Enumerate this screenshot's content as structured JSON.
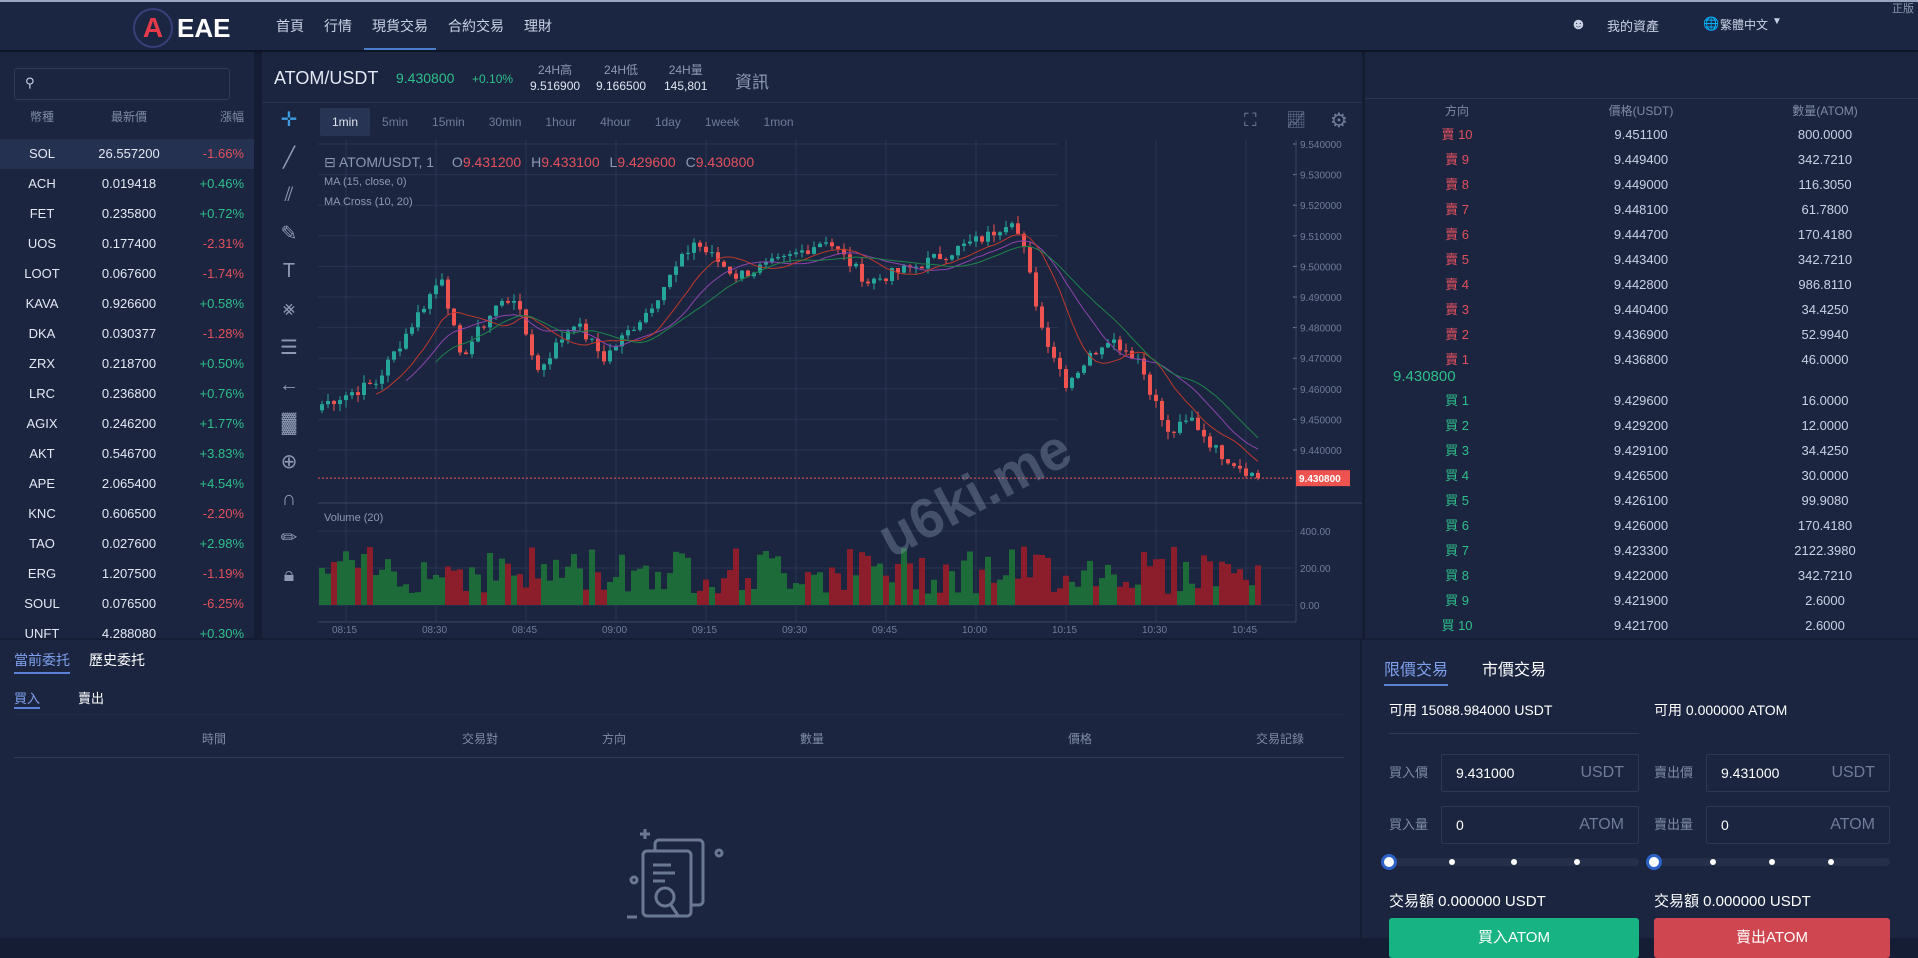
{
  "header": {
    "logo_text": "EAE",
    "nav": [
      "首頁",
      "行情",
      "現貨交易",
      "合約交易",
      "理財"
    ],
    "active_nav": 2,
    "my_assets": "我的資產",
    "language": "繁體中文",
    "corner_text": "正版"
  },
  "sidebar": {
    "search_placeholder": "",
    "columns": [
      "幣種",
      "最新價",
      "漲幅"
    ],
    "coins": [
      [
        "SOL",
        "26.557200",
        "-1.66%"
      ],
      [
        "ACH",
        "0.019418",
        "+0.46%"
      ],
      [
        "FET",
        "0.235800",
        "+0.72%"
      ],
      [
        "UOS",
        "0.177400",
        "-2.31%"
      ],
      [
        "LOOT",
        "0.067600",
        "-1.74%"
      ],
      [
        "KAVA",
        "0.926600",
        "+0.58%"
      ],
      [
        "DKA",
        "0.030377",
        "-1.28%"
      ],
      [
        "ZRX",
        "0.218700",
        "+0.50%"
      ],
      [
        "LRC",
        "0.236800",
        "+0.76%"
      ],
      [
        "AGIX",
        "0.246200",
        "+1.77%"
      ],
      [
        "AKT",
        "0.546700",
        "+3.83%"
      ],
      [
        "APE",
        "2.065400",
        "+4.54%"
      ],
      [
        "KNC",
        "0.606500",
        "-2.20%"
      ],
      [
        "TAO",
        "0.027600",
        "+2.98%"
      ],
      [
        "ERG",
        "1.207500",
        "-1.19%"
      ],
      [
        "SOUL",
        "0.076500",
        "-6.25%"
      ],
      [
        "UNFT",
        "4.288080",
        "+0.30%"
      ]
    ]
  },
  "ticker": {
    "symbol": "ATOM/USDT",
    "price": "9.430800",
    "change": "+0.10%",
    "high_label": "24H高",
    "high": "9.516900",
    "low_label": "24H低",
    "low": "9.166500",
    "vol_label": "24H量",
    "vol": "145,801",
    "info": "資訊"
  },
  "timeframes": [
    "1min",
    "5min",
    "15min",
    "30min",
    "1hour",
    "4hour",
    "1day",
    "1week",
    "1mon"
  ],
  "active_timeframe": 0,
  "chart_legend": {
    "title": "ATOM/USDT, 1",
    "o_label": "O",
    "o": "9.431200",
    "h_label": "H",
    "h": "9.433100",
    "l_label": "L",
    "l": "9.429600",
    "c_label": "C",
    "c": "9.430800",
    "ma": "MA (15, close, 0)",
    "ma_cross": "MA Cross (10, 20)",
    "volume": "Volume (20)"
  },
  "watermark": "u6ki.me",
  "chart_data": {
    "type": "candlestick",
    "interval": "1min",
    "price_ticks": [
      "9.540000",
      "9.530000",
      "9.520000",
      "9.510000",
      "9.500000",
      "9.490000",
      "9.480000",
      "9.470000",
      "9.460000",
      "9.450000",
      "9.440000"
    ],
    "volume_ticks": [
      "400.00",
      "200.00",
      "0.00"
    ],
    "time_ticks": [
      "08:15",
      "08:30",
      "08:45",
      "09:00",
      "09:15",
      "09:30",
      "09:45",
      "10:00",
      "10:15",
      "10:30",
      "10:45"
    ],
    "last_price": "9.430800",
    "ylim": [
      9.425,
      9.541
    ],
    "close_path": [
      [
        "08:11",
        9.455
      ],
      [
        "08:20",
        9.462
      ],
      [
        "08:25",
        9.478
      ],
      [
        "08:31",
        9.497
      ],
      [
        "08:34",
        9.47
      ],
      [
        "08:40",
        9.487
      ],
      [
        "08:43",
        9.49
      ],
      [
        "08:47",
        9.466
      ],
      [
        "08:53",
        9.482
      ],
      [
        "08:58",
        9.47
      ],
      [
        "09:05",
        9.485
      ],
      [
        "09:13",
        9.508
      ],
      [
        "09:20",
        9.497
      ],
      [
        "09:28",
        9.502
      ],
      [
        "09:35",
        9.509
      ],
      [
        "09:42",
        9.495
      ],
      [
        "09:50",
        9.5
      ],
      [
        "10:02",
        9.51
      ],
      [
        "10:06",
        9.516
      ],
      [
        "10:08",
        9.505
      ],
      [
        "10:11",
        9.48
      ],
      [
        "10:15",
        9.462
      ],
      [
        "10:22",
        9.477
      ],
      [
        "10:27",
        9.47
      ],
      [
        "10:32",
        9.445
      ],
      [
        "10:36",
        9.45
      ],
      [
        "10:40",
        9.44
      ],
      [
        "10:47",
        9.4308
      ]
    ],
    "colors": {
      "up": "#26a69a",
      "down": "#ef5350",
      "ma": "#8e44ad",
      "ma_fast": "#c0392b",
      "ma_slow": "#1e8449"
    }
  },
  "orderbook": {
    "columns": [
      "方向",
      "價格(USDT)",
      "數量(ATOM)"
    ],
    "asks": [
      [
        "賣 10",
        "9.451100",
        "800.0000"
      ],
      [
        "賣 9",
        "9.449400",
        "342.7210"
      ],
      [
        "賣 8",
        "9.449000",
        "116.3050"
      ],
      [
        "賣 7",
        "9.448100",
        "61.7800"
      ],
      [
        "賣 6",
        "9.444700",
        "170.4180"
      ],
      [
        "賣 5",
        "9.443400",
        "342.7210"
      ],
      [
        "賣 4",
        "9.442800",
        "986.8110"
      ],
      [
        "賣 3",
        "9.440400",
        "34.4250"
      ],
      [
        "賣 2",
        "9.436900",
        "52.9940"
      ],
      [
        "賣 1",
        "9.436800",
        "46.0000"
      ]
    ],
    "last": "9.430800",
    "bids": [
      [
        "買 1",
        "9.429600",
        "16.0000"
      ],
      [
        "買 2",
        "9.429200",
        "12.0000"
      ],
      [
        "買 3",
        "9.429100",
        "34.4250"
      ],
      [
        "買 4",
        "9.426500",
        "30.0000"
      ],
      [
        "買 5",
        "9.426100",
        "99.9080"
      ],
      [
        "買 6",
        "9.426000",
        "170.4180"
      ],
      [
        "買 7",
        "9.423300",
        "2122.3980"
      ],
      [
        "買 8",
        "9.422000",
        "342.7210"
      ],
      [
        "買 9",
        "9.421900",
        "2.6000"
      ],
      [
        "買 10",
        "9.421700",
        "2.6000"
      ]
    ]
  },
  "orders": {
    "tabs": [
      "當前委托",
      "歷史委托"
    ],
    "sides": [
      "買入",
      "賣出"
    ],
    "columns": [
      "時間",
      "交易對",
      "方向",
      "數量",
      "價格",
      "交易記錄"
    ]
  },
  "trade": {
    "tabs": [
      "限價交易",
      "市價交易"
    ],
    "buy": {
      "avail": "可用 15088.984000 USDT",
      "price_label": "買入價",
      "price": "9.431000",
      "price_unit": "USDT",
      "qty_label": "買入量",
      "qty": "0",
      "qty_unit": "ATOM",
      "amount": "交易額 0.000000 USDT",
      "button": "買入ATOM",
      "percent": 0
    },
    "sell": {
      "avail": "可用 0.000000 ATOM",
      "price_label": "賣出價",
      "price": "9.431000",
      "price_unit": "USDT",
      "qty_label": "賣出量",
      "qty": "0",
      "qty_unit": "ATOM",
      "amount": "交易額 0.000000 USDT",
      "button": "賣出ATOM",
      "percent": 0
    }
  }
}
